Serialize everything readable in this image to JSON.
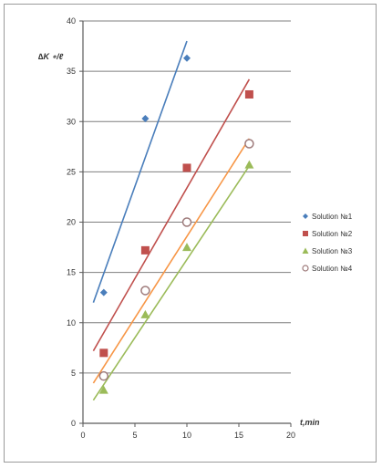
{
  "chart_data": {
    "type": "scatter",
    "ylabel": "∆K ∘/ℓ",
    "xlabel": "t,min",
    "xlim": [
      0,
      20
    ],
    "ylim": [
      0,
      40
    ],
    "xticks": [
      "0",
      "5",
      "10",
      "15",
      "20"
    ],
    "yticks": [
      "0",
      "5",
      "10",
      "15",
      "20",
      "25",
      "30",
      "35",
      "40"
    ],
    "grid": "horizontal",
    "legend_position": "right",
    "series": [
      {
        "name": "Solution №1",
        "marker": "diamond",
        "color": "#4a7ebb",
        "points": [
          [
            2,
            13
          ],
          [
            6,
            30.3
          ],
          [
            10,
            36.3
          ]
        ],
        "trendline": [
          [
            1,
            12
          ],
          [
            10,
            38
          ]
        ]
      },
      {
        "name": "Solution №2",
        "marker": "square",
        "color": "#c0504d",
        "points": [
          [
            2,
            7
          ],
          [
            6,
            17.2
          ],
          [
            10,
            25.4
          ],
          [
            16,
            32.7
          ]
        ],
        "trendline": [
          [
            1,
            7.2
          ],
          [
            16,
            34.2
          ]
        ]
      },
      {
        "name": "Solution №3",
        "marker": "triangle",
        "color": "#9bbb59",
        "points": [
          [
            2,
            3.3
          ],
          [
            6,
            10.8
          ],
          [
            10,
            17.5
          ],
          [
            16,
            25.7
          ]
        ],
        "trendline": [
          [
            1,
            2.3
          ],
          [
            16,
            25.6
          ]
        ]
      },
      {
        "name": "Solution №4",
        "marker": "circle",
        "color": "#f79646",
        "points": [
          [
            2,
            4.7
          ],
          [
            6,
            13.2
          ],
          [
            10,
            20
          ],
          [
            16,
            27.8
          ]
        ],
        "trendline": [
          [
            1,
            4
          ],
          [
            16,
            28.3
          ]
        ]
      }
    ]
  }
}
